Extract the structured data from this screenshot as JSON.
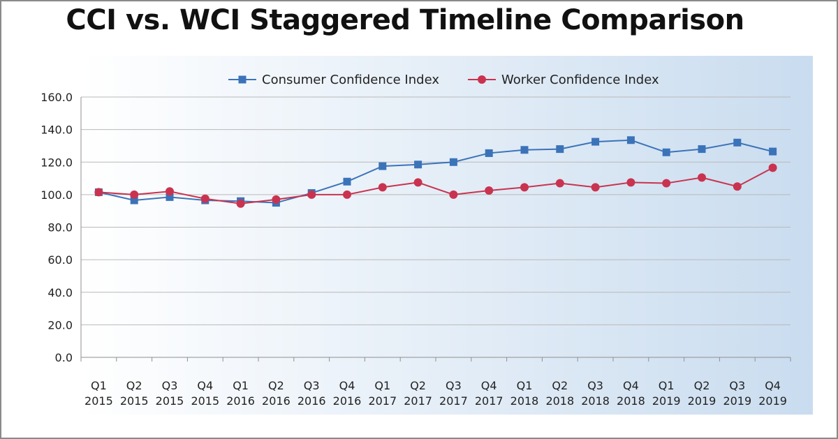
{
  "title": "CCI vs. WCI Staggered Timeline Comparison",
  "colors": {
    "cci": "#3b73b9",
    "wci": "#c9334f",
    "grid": "#b9b9b9",
    "plot_bg_start": "#ffffff",
    "plot_bg_end": "#c9dcef"
  },
  "chart_data": {
    "type": "line",
    "title": "CCI vs. WCI Staggered Timeline Comparison",
    "xlabel": "",
    "ylabel": "",
    "ylim": [
      0,
      160
    ],
    "yticks": [
      "0.0",
      "20.0",
      "40.0",
      "60.0",
      "80.0",
      "100.0",
      "120.0",
      "140.0",
      "160.0"
    ],
    "grid": true,
    "legend_position": "top",
    "categories": [
      [
        "Q1",
        "2015"
      ],
      [
        "Q2",
        "2015"
      ],
      [
        "Q3",
        "2015"
      ],
      [
        "Q4",
        "2015"
      ],
      [
        "Q1",
        "2016"
      ],
      [
        "Q2",
        "2016"
      ],
      [
        "Q3",
        "2016"
      ],
      [
        "Q4",
        "2016"
      ],
      [
        "Q1",
        "2017"
      ],
      [
        "Q2",
        "2017"
      ],
      [
        "Q3",
        "2017"
      ],
      [
        "Q4",
        "2017"
      ],
      [
        "Q1",
        "2018"
      ],
      [
        "Q2",
        "2018"
      ],
      [
        "Q3",
        "2018"
      ],
      [
        "Q4",
        "2018"
      ],
      [
        "Q1",
        "2019"
      ],
      [
        "Q2",
        "2019"
      ],
      [
        "Q3",
        "2019"
      ],
      [
        "Q4",
        "2019"
      ]
    ],
    "series": [
      {
        "name": "Consumer Confidence Index",
        "marker": "square",
        "color": "#3b73b9",
        "values": [
          101.5,
          96.5,
          98.5,
          96.5,
          96.0,
          95.0,
          101.0,
          108.0,
          117.5,
          118.5,
          120.0,
          125.5,
          127.5,
          128.0,
          132.5,
          133.5,
          126.0,
          128.0,
          132.0,
          126.5
        ]
      },
      {
        "name": "Worker Confidence Index",
        "marker": "circle",
        "color": "#c9334f",
        "values": [
          101.5,
          100.0,
          102.0,
          97.5,
          94.5,
          97.0,
          100.0,
          100.0,
          104.5,
          107.5,
          100.0,
          102.5,
          104.5,
          107.0,
          104.5,
          107.5,
          107.0,
          110.5,
          105.0,
          116.5
        ]
      }
    ]
  }
}
